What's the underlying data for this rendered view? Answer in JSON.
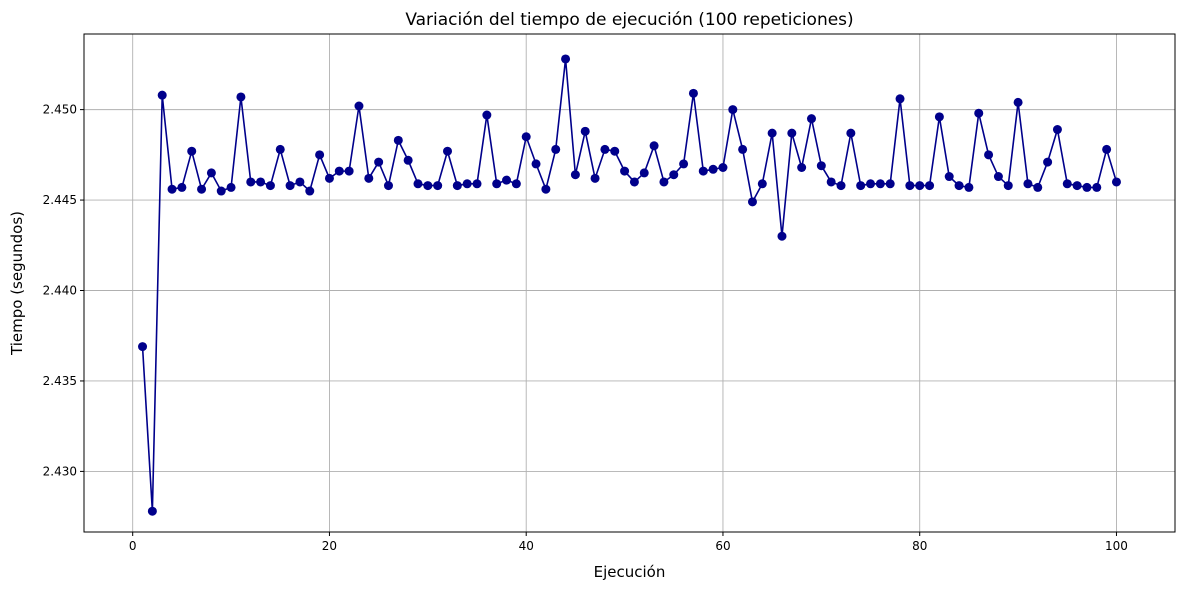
{
  "chart_data": {
    "type": "line",
    "title": "Variación del tiempo de ejecución (100 repeticiones)",
    "xlabel": "Ejecución",
    "ylabel": "Tiempo (segundos)",
    "xlim": [
      -4.95,
      105.95
    ],
    "ylim": [
      2.42665,
      2.45418
    ],
    "xticks": [
      0,
      20,
      40,
      60,
      80,
      100
    ],
    "yticks": [
      2.43,
      2.435,
      2.44,
      2.445,
      2.45
    ],
    "xtick_labels": [
      "0",
      "20",
      "40",
      "60",
      "80",
      "100"
    ],
    "ytick_labels": [
      "2.430",
      "2.435",
      "2.440",
      "2.445",
      "2.450"
    ],
    "grid": true,
    "marker": "circle",
    "color": "#00008b",
    "series": [
      {
        "x": [
          1,
          2,
          3,
          4,
          5,
          6,
          7,
          8,
          9,
          10,
          11,
          12,
          13,
          14,
          15,
          16,
          17,
          18,
          19,
          20,
          21,
          22,
          23,
          24,
          25,
          26,
          27,
          28,
          29,
          30,
          31,
          32,
          33,
          34,
          35,
          36,
          37,
          38,
          39,
          40,
          41,
          42,
          43,
          44,
          45,
          46,
          47,
          48,
          49,
          50,
          51,
          52,
          53,
          54,
          55,
          56,
          57,
          58,
          59,
          60,
          61,
          62,
          63,
          64,
          65,
          66,
          67,
          68,
          69,
          70,
          71,
          72,
          73,
          74,
          75,
          76,
          77,
          78,
          79,
          80,
          81,
          82,
          83,
          84,
          85,
          86,
          87,
          88,
          89,
          90,
          91,
          92,
          93,
          94,
          95,
          96,
          97,
          98,
          99,
          100
        ],
        "values": [
          2.4369,
          2.4278,
          2.4508,
          2.4456,
          2.4457,
          2.4477,
          2.4456,
          2.4465,
          2.4455,
          2.4457,
          2.4507,
          2.446,
          2.446,
          2.4458,
          2.4478,
          2.4458,
          2.446,
          2.4455,
          2.4475,
          2.4462,
          2.4466,
          2.4466,
          2.4502,
          2.4462,
          2.4471,
          2.4458,
          2.4483,
          2.4472,
          2.4459,
          2.4458,
          2.4458,
          2.4477,
          2.4458,
          2.4459,
          2.4459,
          2.4497,
          2.4459,
          2.4461,
          2.4459,
          2.4485,
          2.447,
          2.4456,
          2.4478,
          2.4528,
          2.4464,
          2.4488,
          2.4462,
          2.4478,
          2.4477,
          2.4466,
          2.446,
          2.4465,
          2.448,
          2.446,
          2.4464,
          2.447,
          2.4509,
          2.4466,
          2.4467,
          2.4468,
          2.45,
          2.4478,
          2.4449,
          2.4459,
          2.4487,
          2.443,
          2.4487,
          2.4468,
          2.4495,
          2.4469,
          2.446,
          2.4458,
          2.4487,
          2.4458,
          2.4459,
          2.4459,
          2.4459,
          2.4506,
          2.4458,
          2.4458,
          2.4458,
          2.4496,
          2.4463,
          2.4458,
          2.4457,
          2.4498,
          2.4475,
          2.4463,
          2.4458,
          2.4504,
          2.4459,
          2.4457,
          2.4471,
          2.4489,
          2.4459,
          2.4458,
          2.4457,
          2.4457,
          2.4478,
          2.446
        ]
      }
    ]
  }
}
